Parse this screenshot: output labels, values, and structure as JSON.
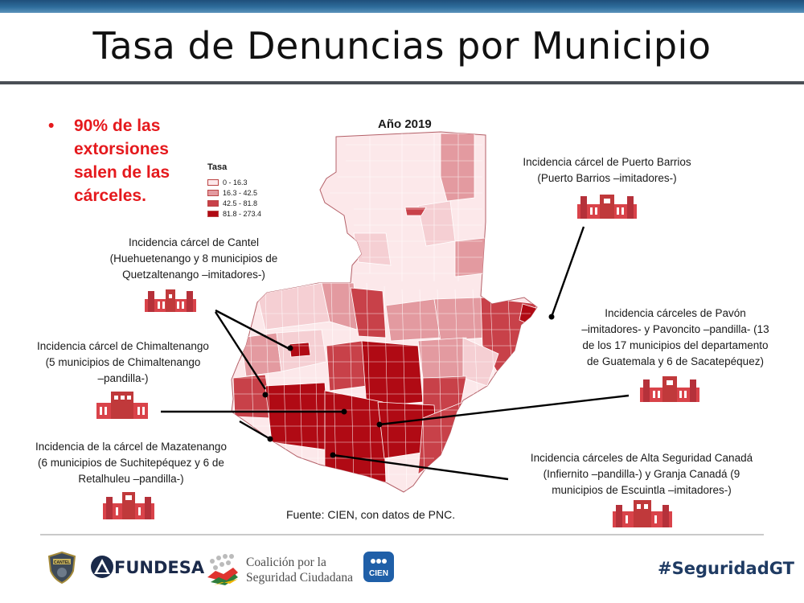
{
  "page": {
    "title": "Tasa de Denuncias por Municipio"
  },
  "bullet": {
    "marker": "•",
    "text": "90% de las extorsiones salen de las cárceles."
  },
  "map": {
    "title": "Año 2019",
    "legend": {
      "title": "Tasa",
      "items": [
        {
          "label": "0 - 16.3",
          "color": "#fce8ea"
        },
        {
          "label": "16.3 - 42.5",
          "color": "#e39aa0"
        },
        {
          "label": "42.5 - 81.8",
          "color": "#c84149"
        },
        {
          "label": "81.8 - 273.4",
          "color": "#b00a14"
        }
      ]
    }
  },
  "annotations": {
    "cantel": [
      "Incidencia cárcel de Cantel",
      "(Huehuetenango y 8 municipios de",
      "Quetzaltenango –imitadores-)"
    ],
    "chimaltenango": [
      "Incidencia cárcel de Chimaltenango",
      "(5 municipios de Chimaltenango",
      "–pandilla-)"
    ],
    "mazatenango": [
      "Incidencia de la cárcel de Mazatenango",
      "(6 municipios de Suchitepéquez y 6 de",
      "Retalhuleu –pandilla-)"
    ],
    "puerto_barrios": [
      "Incidencia cárcel de Puerto Barrios",
      "(Puerto Barrios –imitadores-)"
    ],
    "pavon": [
      "Incidencia cárceles de Pavón",
      "–imitadores- y Pavoncito –pandilla- (13",
      "de los 17 municipios del departamento",
      "de Guatemala y 6 de Sacatepéquez)"
    ],
    "canada": [
      "Incidencia cárceles de Alta Seguridad Canadá",
      "(Infiernito –pandilla-) y Granja Canadá (9",
      "municipios de Escuintla –imitadores-)"
    ]
  },
  "source": "Fuente: CIEN, con datos de PNC.",
  "footer": {
    "logos": {
      "cantel_badge": "CANTEL",
      "fundesa": "FUNDESA",
      "coalicion": [
        "Coalición por la",
        "Seguridad Ciudadana"
      ],
      "cien": "CIEN"
    },
    "hashtag": "#SeguridadGT"
  },
  "colors": {
    "accent_red": "#e5191d",
    "top_bar": "#2e6d9c",
    "prison": "#c0393b"
  }
}
